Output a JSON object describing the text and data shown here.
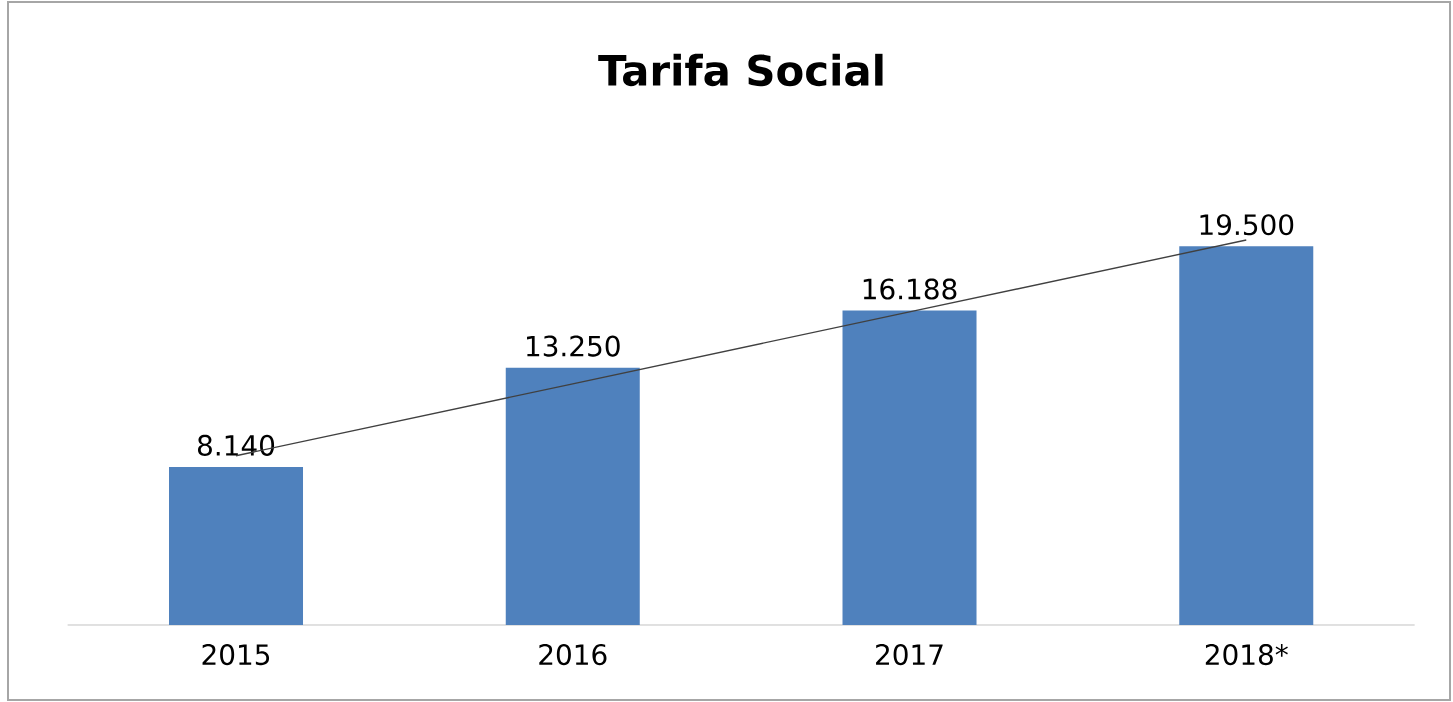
{
  "chart_data": {
    "type": "bar",
    "title": "Tarifa Social",
    "categories": [
      "2015",
      "2016",
      "2017",
      "2018*"
    ],
    "series": [
      {
        "color": "#4f81bd",
        "values": [
          8140,
          13250,
          16188,
          19500
        ],
        "value_labels": [
          "8.140",
          "13.250",
          "16.188",
          "19.500"
        ]
      },
      {
        "type": "line",
        "color": "#404040",
        "values": [
          8717,
          12419,
          16121,
          19822
        ]
      }
    ]
  }
}
